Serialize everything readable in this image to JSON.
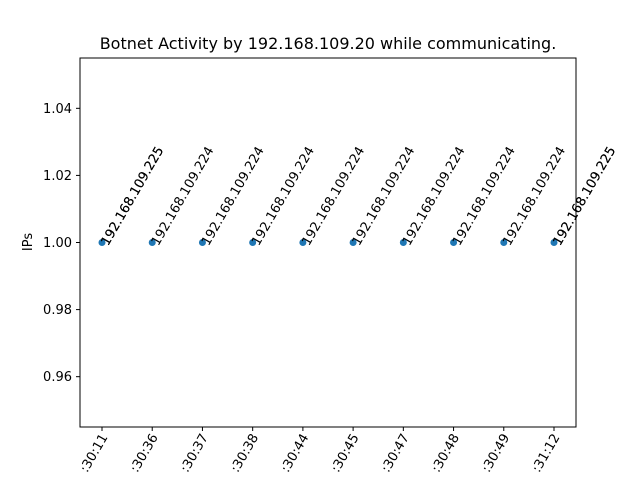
{
  "chart_data": {
    "type": "scatter",
    "title": "Botnet Activity by 192.168.109.20 while communicating.",
    "xlabel": "",
    "ylabel": "IPs",
    "categories": [
      ":30:11",
      ":30:36",
      ":30:37",
      ":30:38",
      ":30:44",
      ":30:45",
      ":30:47",
      ":30:48",
      ":30:49",
      ":31:12"
    ],
    "values": [
      1.0,
      1.0,
      1.0,
      1.0,
      1.0,
      1.0,
      1.0,
      1.0,
      1.0,
      1.0
    ],
    "point_labels": [
      [
        "192.168.109.225",
        "192.168.109.225"
      ],
      [
        "192.168.109.224"
      ],
      [
        "192.168.109.224"
      ],
      [
        "192.168.109.224"
      ],
      [
        "192.168.109.224"
      ],
      [
        "192.168.109.224"
      ],
      [
        "192.168.109.224"
      ],
      [
        "192.168.109.224"
      ],
      [
        "192.168.109.224"
      ],
      [
        "192.168.109.225",
        "192.168.109.225"
      ]
    ],
    "ylim": [
      0.945,
      1.055
    ],
    "yticks": [
      "0.96",
      "0.98",
      "1.00",
      "1.02",
      "1.04"
    ],
    "yticks_values": [
      0.96,
      0.98,
      1.0,
      1.02,
      1.04
    ],
    "grid": false,
    "legend": "none",
    "marker_color": "#1f77b4"
  }
}
